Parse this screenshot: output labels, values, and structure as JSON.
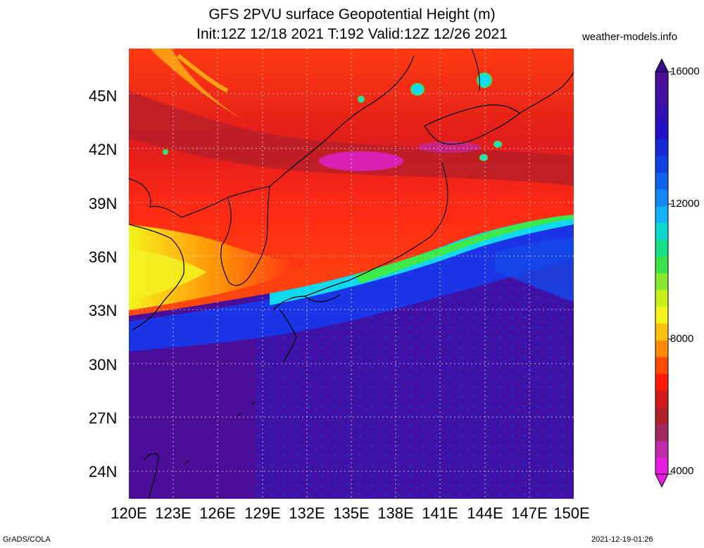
{
  "title": {
    "line1": "GFS 2PVU surface Geopotential Height (m)",
    "line2": "Init:12Z 12/18 2021 T:192 Valid:12Z 12/26 2021"
  },
  "site": "weather-models.info",
  "map": {
    "lat_labels": [
      "45N",
      "42N",
      "39N",
      "36N",
      "33N",
      "30N",
      "27N",
      "24N"
    ],
    "lon_labels": [
      "120E",
      "123E",
      "126E",
      "129E",
      "132E",
      "135E",
      "138E",
      "141E",
      "144E",
      "147E",
      "150E"
    ],
    "field_colors": {
      "deep_low": "#4b0fa0",
      "blue": "#1733e8",
      "cyan": "#10d8f0",
      "green": "#3ce84a",
      "yellow": "#f2f21e",
      "orange": "#ff9a12",
      "red": "#ff2a14",
      "dark_red": "#b81e28",
      "magenta": "#e020d8"
    }
  },
  "colorbar": {
    "labels": [
      "16000",
      "12000",
      "8000",
      "4000"
    ],
    "colors": [
      "#e51ee0",
      "#c02aa8",
      "#a02a60",
      "#b0202a",
      "#d21a1a",
      "#ff1a0a",
      "#ff4a0a",
      "#ff8a08",
      "#ffc010",
      "#f4f41a",
      "#c8f01e",
      "#8ae830",
      "#3ce04a",
      "#18e08a",
      "#10d8d0",
      "#12b0f4",
      "#1288f4",
      "#1060ea",
      "#1040e0",
      "#1828d8",
      "#2010c8",
      "#3010b0",
      "#4010a0",
      "#4a0e98"
    ]
  },
  "credits": {
    "left": "GrADS/COLA",
    "right": "2021-12-19-01:26"
  }
}
